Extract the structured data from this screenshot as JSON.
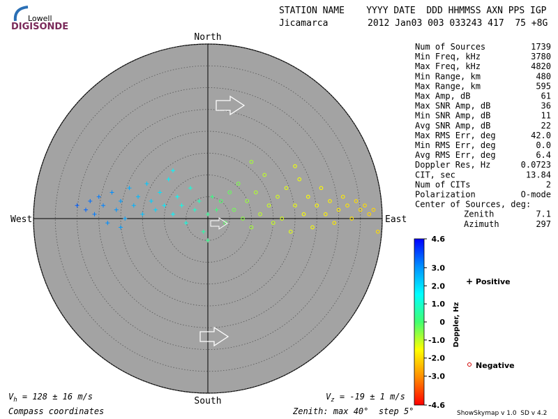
{
  "logo": {
    "brand": "Lowell",
    "product": "DIGISONDE"
  },
  "header": {
    "columns": "STATION NAME    YYYY DATE  DDD HHMMSS AXN PPS IGP",
    "station": "Jicamarca",
    "values": "2012 Jan03 003 033243 417  75 +8G"
  },
  "stats": [
    {
      "label": "Num of Sources",
      "value": "1739"
    },
    {
      "label": "Min Freq, kHz",
      "value": "3780"
    },
    {
      "label": "Max Freq, kHz",
      "value": "4820"
    },
    {
      "label": "Min Range, km",
      "value": "480"
    },
    {
      "label": "Max Range, km",
      "value": "595"
    },
    {
      "label": "Max Amp, dB",
      "value": "61"
    },
    {
      "label": "Max SNR Amp, dB",
      "value": "36"
    },
    {
      "label": "Min SNR Amp, dB",
      "value": "11"
    },
    {
      "label": "Avg SNR Amp, dB",
      "value": "22"
    },
    {
      "label": "Max RMS Err, deg",
      "value": "42.0"
    },
    {
      "label": "Min RMS Err, deg",
      "value": "0.0"
    },
    {
      "label": "Avg RMS Err, deg",
      "value": "6.4"
    },
    {
      "label": "Doppler Res, Hz",
      "value": "0.0723"
    },
    {
      "label": "CIT, sec",
      "value": "13.84"
    },
    {
      "label": "Num of CITs",
      "value": "2"
    },
    {
      "label": "Polarization",
      "value": "O-mode"
    },
    {
      "label": "Center of Sources, deg:"
    },
    {
      "label": "Zenith",
      "value": "7.1",
      "indent": true
    },
    {
      "label": "Azimuth",
      "value": "297",
      "indent": true
    }
  ],
  "chart_data": {
    "type": "skymap",
    "compass": {
      "north": "North",
      "south": "South",
      "west": "West",
      "east": "East"
    },
    "rlim": [
      0,
      40
    ],
    "rticks": [
      5,
      10,
      15,
      20,
      25,
      30,
      35,
      40
    ],
    "x": [
      -30,
      -28,
      -27,
      -26,
      -25,
      -24,
      -23,
      -22,
      -21,
      -20,
      -19,
      -18,
      -17,
      -16,
      -15,
      -14,
      -13,
      -12,
      -11,
      -10,
      -9,
      -8,
      -7,
      -6,
      -5,
      -4,
      -3,
      -2,
      -1,
      0,
      1,
      2,
      3,
      4,
      5,
      6,
      7,
      8,
      9,
      10,
      11,
      12,
      13,
      14,
      15,
      16,
      17,
      18,
      19,
      20,
      21,
      22,
      23,
      24,
      25,
      26,
      27,
      28,
      29,
      30,
      31,
      32,
      33,
      34,
      35,
      36,
      37,
      38,
      39,
      20,
      10,
      -8,
      -20,
      0
    ],
    "y": [
      3,
      2,
      4,
      1,
      5,
      3,
      -1,
      6,
      2,
      4,
      0,
      7,
      3,
      5,
      1,
      8,
      4,
      2,
      6,
      3,
      9,
      1,
      5,
      3,
      -1,
      7,
      2,
      4,
      -3,
      1,
      5,
      2,
      4,
      -1,
      6,
      2,
      8,
      0,
      4,
      -2,
      6,
      1,
      10,
      3,
      -1,
      5,
      0,
      7,
      -3,
      3,
      9,
      1,
      5,
      -2,
      3,
      7,
      1,
      4,
      -1,
      2,
      5,
      3,
      0,
      4,
      2,
      3,
      1,
      2,
      -3,
      12,
      13,
      11,
      -2,
      -5
    ],
    "doppler": [
      3.6,
      3.5,
      3.4,
      3.3,
      3.3,
      3.2,
      3.1,
      3.1,
      3.0,
      2.9,
      2.8,
      2.7,
      2.6,
      2.5,
      2.4,
      2.3,
      2.2,
      2.1,
      1.9,
      1.8,
      1.7,
      1.6,
      1.5,
      1.3,
      1.2,
      1.1,
      1.0,
      0.8,
      0.6,
      0.4,
      0.2,
      0.1,
      -0.1,
      -0.2,
      -0.3,
      -0.4,
      -0.5,
      -0.6,
      -0.7,
      -0.8,
      -0.9,
      -1.0,
      -1.0,
      -1.1,
      -1.1,
      -1.2,
      -1.2,
      -1.3,
      -1.3,
      -1.4,
      -1.4,
      -1.5,
      -1.5,
      -1.5,
      -1.6,
      -1.6,
      -1.7,
      -1.7,
      -1.8,
      -1.8,
      -1.8,
      -1.9,
      -1.9,
      -2.0,
      -2.0,
      -2.0,
      -2.1,
      -2.1,
      -2.0,
      -1.4,
      -0.8,
      1.6,
      2.9,
      0.3
    ],
    "clim": [
      -4.6,
      4.6
    ],
    "cticks": [
      4.6,
      {
        "value": 3,
        "label": "3.0"
      },
      {
        "value": 2,
        "label": "2.0"
      },
      {
        "value": 1,
        "label": "1.0"
      },
      0,
      {
        "value": -1,
        "label": "-1.0"
      },
      {
        "value": -2,
        "label": "-2.0"
      },
      {
        "value": -3,
        "label": "-3.0"
      },
      -4.6
    ],
    "colormap": [
      "#ff0000",
      "#ff8c00",
      "#ffff00",
      "#40ff70",
      "#00ffff",
      "#0090ff",
      "#0000ff"
    ],
    "colorbar_label": "Doppler, Hz",
    "legend": {
      "positive": "Positive",
      "negative": "Negative",
      "positive_color": "#0000c0",
      "negative_color": "#d00000"
    },
    "vh": {
      "symbol": "V",
      "subscript": "h",
      "text": " = 128 ± 16 m/s"
    },
    "vz": {
      "symbol": "V",
      "subscript": "z",
      "text": " = -19 ± 1 m/s"
    },
    "coords_note": "Compass coordinates",
    "zenith_note": "Zenith: max 40°  step 5°"
  },
  "footer": {
    "version": "ShowSkymap v 1.0  SD v 4.2"
  }
}
